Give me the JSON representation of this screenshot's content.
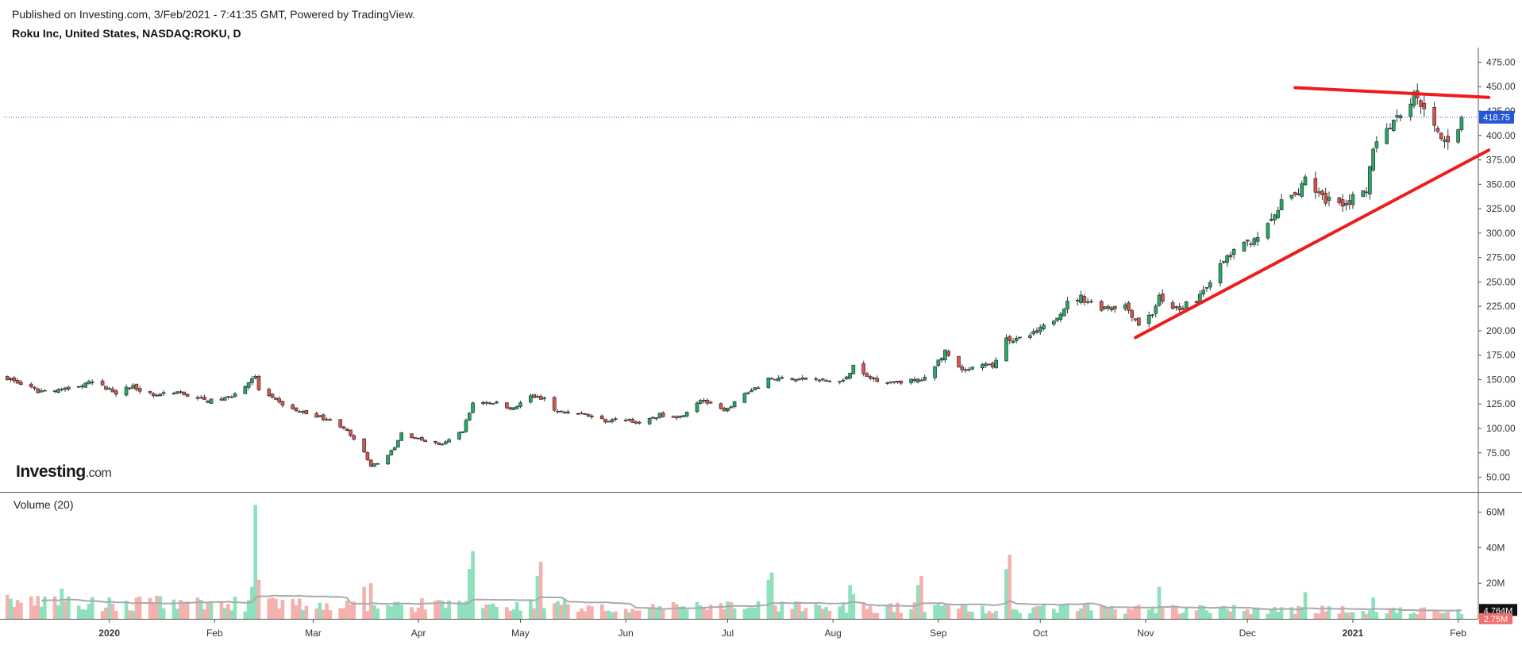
{
  "header": {
    "published": "Published on Investing.com, 3/Feb/2021 - 7:41:35 GMT, Powered by TradingView.",
    "symbol": "Roku Inc, United States, NASDAQ:ROKU, D"
  },
  "logo": {
    "name": "Investing",
    "suffix": ".com"
  },
  "volume_panel": {
    "title": "Volume (20)"
  },
  "colors": {
    "up": "#26a869",
    "down": "#d9534f",
    "vol_up": "#8fe0bd",
    "vol_down": "#f5b1ad",
    "trendline": "#ee1c1c",
    "price_line": "#2457d8",
    "ma": "#aaaaaa"
  },
  "chart_data": [
    {
      "type": "candlestick",
      "ylim": [
        35,
        490
      ],
      "yticks": [
        50,
        75,
        100,
        125,
        150,
        175,
        200,
        225,
        250,
        275,
        300,
        325,
        350,
        375,
        400,
        425,
        450,
        475
      ],
      "ytick_labels": [
        "50.00",
        "75.00",
        "100.00",
        "125.00",
        "150.00",
        "175.00",
        "200.00",
        "225.00",
        "250.00",
        "275.00",
        "300.00",
        "325.00",
        "350.00",
        "375.00",
        "400.00",
        "425.00",
        "450.00",
        "475.00"
      ],
      "xticks": [
        {
          "date": "2020-01-01",
          "label": "2020",
          "bold": true
        },
        {
          "date": "2020-02-01",
          "label": "Feb"
        },
        {
          "date": "2020-03-01",
          "label": "Mar"
        },
        {
          "date": "2020-04-01",
          "label": "Apr"
        },
        {
          "date": "2020-05-01",
          "label": "May"
        },
        {
          "date": "2020-06-01",
          "label": "Jun"
        },
        {
          "date": "2020-07-01",
          "label": "Jul"
        },
        {
          "date": "2020-08-01",
          "label": "Aug"
        },
        {
          "date": "2020-09-01",
          "label": "Sep"
        },
        {
          "date": "2020-10-01",
          "label": "Oct"
        },
        {
          "date": "2020-11-01",
          "label": "Nov"
        },
        {
          "date": "2020-12-01",
          "label": "Dec"
        },
        {
          "date": "2021-01-01",
          "label": "2021",
          "bold": true
        },
        {
          "date": "2021-02-01",
          "label": "Feb"
        }
      ],
      "last_price": 418.75,
      "last_price_label": "418.75",
      "trendlines": [
        {
          "from": {
            "date": "2020-10-29",
            "value": 193
          },
          "to": {
            "date": "2021-02-10",
            "value": 385
          }
        },
        {
          "from": {
            "date": "2020-12-15",
            "value": 449
          },
          "to": {
            "date": "2021-02-10",
            "value": 439
          }
        }
      ],
      "anchors": [
        [
          "2019-12-02",
          152
        ],
        [
          "2019-12-06",
          145
        ],
        [
          "2019-12-11",
          138
        ],
        [
          "2019-12-17",
          140
        ],
        [
          "2019-12-24",
          144
        ],
        [
          "2019-12-27",
          147
        ],
        [
          "2020-01-03",
          137
        ],
        [
          "2020-01-08",
          143
        ],
        [
          "2020-01-14",
          134
        ],
        [
          "2020-01-22",
          136
        ],
        [
          "2020-01-30",
          128
        ],
        [
          "2020-02-05",
          131
        ],
        [
          "2020-02-10",
          145
        ],
        [
          "2020-02-13",
          152
        ],
        [
          "2020-02-14",
          140
        ],
        [
          "2020-02-19",
          128
        ],
        [
          "2020-02-25",
          118
        ],
        [
          "2020-03-02",
          113
        ],
        [
          "2020-03-06",
          108
        ],
        [
          "2020-03-10",
          101
        ],
        [
          "2020-03-16",
          75
        ],
        [
          "2020-03-18",
          62
        ],
        [
          "2020-03-20",
          64
        ],
        [
          "2020-03-25",
          80
        ],
        [
          "2020-03-27",
          95
        ],
        [
          "2020-04-02",
          88
        ],
        [
          "2020-04-08",
          83
        ],
        [
          "2020-04-14",
          98
        ],
        [
          "2020-04-17",
          126
        ],
        [
          "2020-04-23",
          127
        ],
        [
          "2020-04-29",
          120
        ],
        [
          "2020-05-04",
          133
        ],
        [
          "2020-05-08",
          130
        ],
        [
          "2020-05-12",
          117
        ],
        [
          "2020-05-18",
          116
        ],
        [
          "2020-05-26",
          108
        ],
        [
          "2020-06-02",
          109
        ],
        [
          "2020-06-05",
          104
        ],
        [
          "2020-06-11",
          114
        ],
        [
          "2020-06-17",
          112
        ],
        [
          "2020-06-23",
          130
        ],
        [
          "2020-06-30",
          117
        ],
        [
          "2020-07-06",
          135
        ],
        [
          "2020-07-13",
          150
        ],
        [
          "2020-07-20",
          152
        ],
        [
          "2020-07-29",
          149
        ],
        [
          "2020-08-04",
          148
        ],
        [
          "2020-08-07",
          164
        ],
        [
          "2020-08-11",
          152
        ],
        [
          "2020-08-17",
          148
        ],
        [
          "2020-08-27",
          149
        ],
        [
          "2020-08-31",
          165
        ],
        [
          "2020-09-03",
          178
        ],
        [
          "2020-09-08",
          158
        ],
        [
          "2020-09-15",
          165
        ],
        [
          "2020-09-17",
          163
        ],
        [
          "2020-09-21",
          192
        ],
        [
          "2020-09-24",
          190
        ],
        [
          "2020-09-30",
          198
        ],
        [
          "2020-10-05",
          212
        ],
        [
          "2020-10-09",
          228
        ],
        [
          "2020-10-13",
          234
        ],
        [
          "2020-10-19",
          224
        ],
        [
          "2020-10-26",
          226
        ],
        [
          "2020-10-30",
          207
        ],
        [
          "2020-11-03",
          218
        ],
        [
          "2020-11-05",
          234
        ],
        [
          "2020-11-09",
          221
        ],
        [
          "2020-11-16",
          232
        ],
        [
          "2020-11-19",
          247
        ],
        [
          "2020-11-25",
          275
        ],
        [
          "2020-12-01",
          290
        ],
        [
          "2020-12-07",
          306
        ],
        [
          "2020-12-11",
          330
        ],
        [
          "2020-12-16",
          342
        ],
        [
          "2020-12-18",
          360
        ],
        [
          "2020-12-23",
          335
        ],
        [
          "2020-12-30",
          332
        ],
        [
          "2021-01-05",
          340
        ],
        [
          "2021-01-07",
          390
        ],
        [
          "2021-01-11",
          410
        ],
        [
          "2021-01-14",
          420
        ],
        [
          "2021-01-19",
          440
        ],
        [
          "2021-01-22",
          432
        ],
        [
          "2021-01-26",
          400
        ],
        [
          "2021-01-28",
          393
        ],
        [
          "2021-02-01",
          410
        ],
        [
          "2021-02-02",
          418.75
        ]
      ]
    },
    {
      "type": "bar",
      "name": "Volume",
      "ylim": [
        0,
        66000000
      ],
      "yticks": [
        20000000,
        40000000,
        60000000
      ],
      "ytick_labels": [
        "20M",
        "40M",
        "60M"
      ],
      "last_ma": 4764000,
      "last_ma_label": "4.764M",
      "last_volume": 2750000,
      "last_volume_label": "2.75M",
      "spikes": [
        [
          "2019-12-02",
          13500000
        ],
        [
          "2019-12-18",
          17000000
        ],
        [
          "2020-01-15",
          13000000
        ],
        [
          "2020-02-12",
          18000000
        ],
        [
          "2020-02-13",
          64000000
        ],
        [
          "2020-02-14",
          22000000
        ],
        [
          "2020-03-16",
          18000000
        ],
        [
          "2020-03-18",
          20000000
        ],
        [
          "2020-04-16",
          28000000
        ],
        [
          "2020-04-17",
          38000000
        ],
        [
          "2020-05-06",
          24000000
        ],
        [
          "2020-05-07",
          32000000
        ],
        [
          "2020-07-13",
          22000000
        ],
        [
          "2020-07-14",
          26000000
        ],
        [
          "2020-08-06",
          19000000
        ],
        [
          "2020-08-07",
          14000000
        ],
        [
          "2020-08-26",
          19000000
        ],
        [
          "2020-08-27",
          24000000
        ],
        [
          "2020-09-21",
          28000000
        ],
        [
          "2020-09-22",
          36000000
        ],
        [
          "2020-11-05",
          18000000
        ],
        [
          "2020-12-18",
          15000000
        ],
        [
          "2021-01-07",
          12000000
        ]
      ]
    }
  ]
}
